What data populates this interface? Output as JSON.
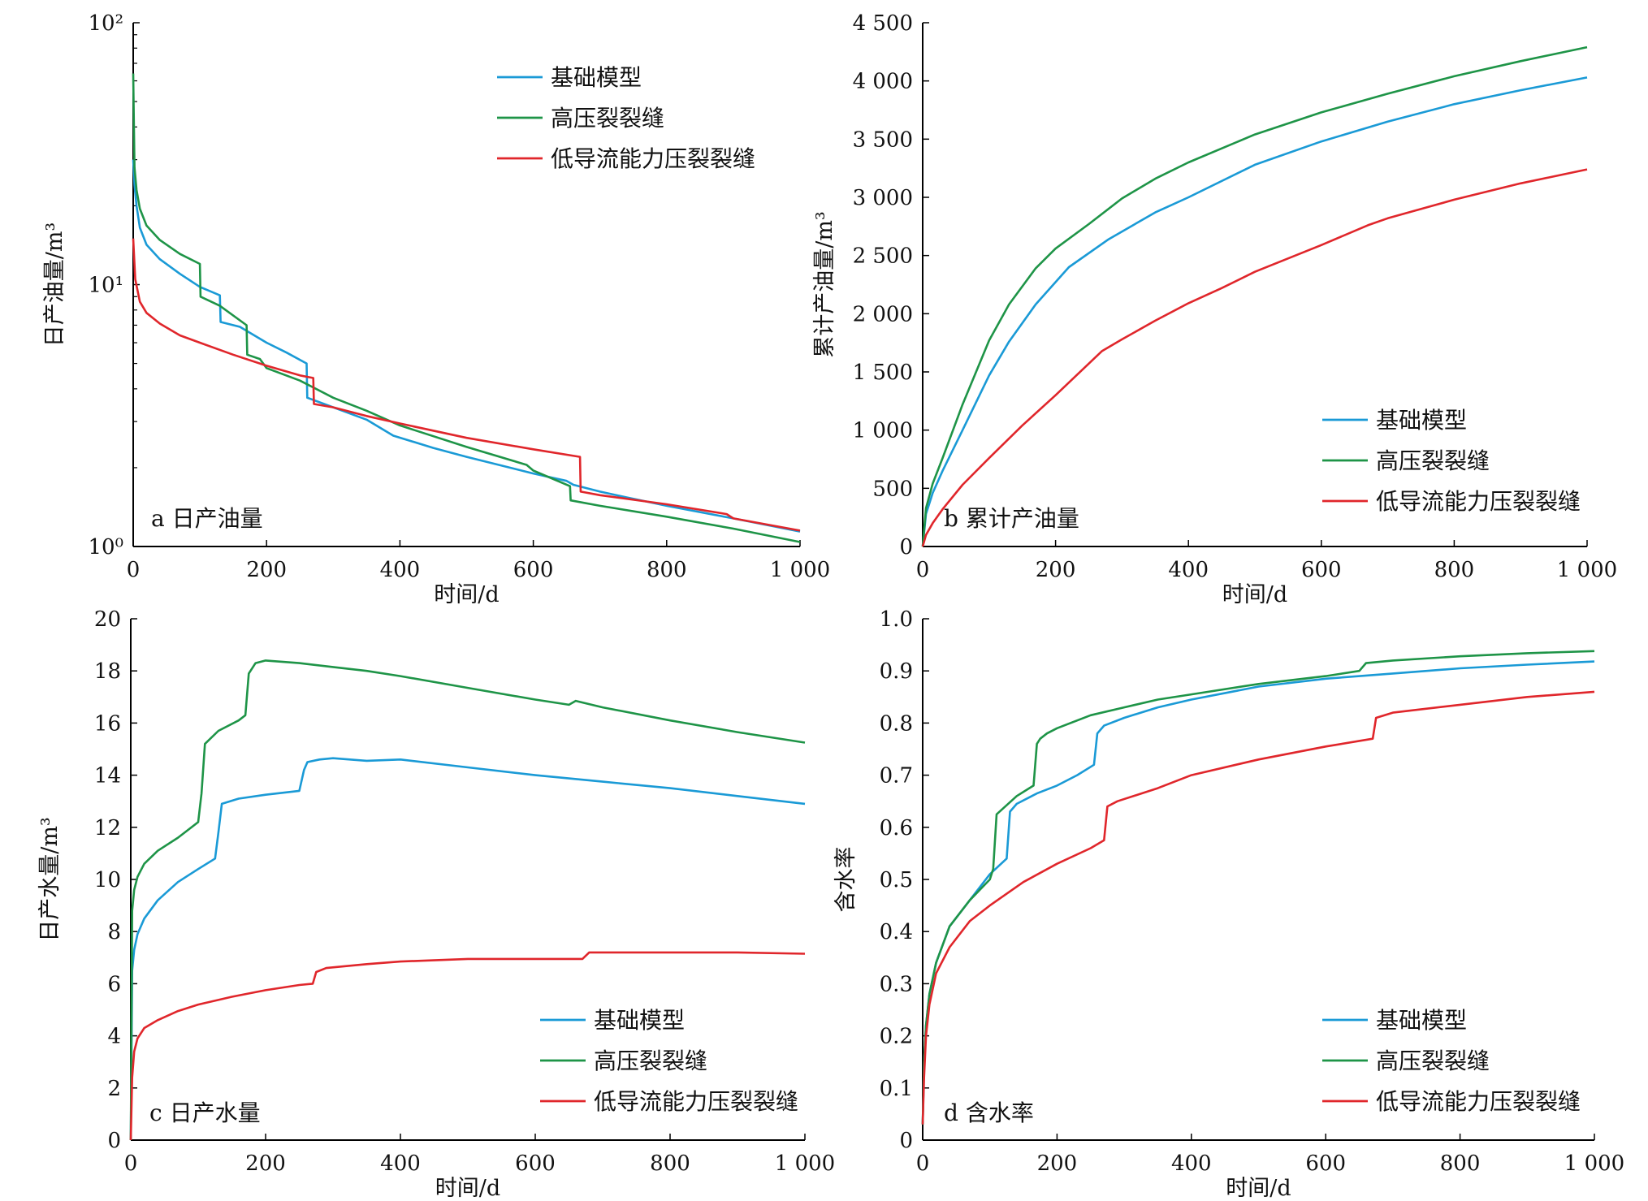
{
  "chart_data": [
    {
      "type": "line",
      "panel_label": "a 日产油量",
      "xlabel": "时间/d",
      "ylabel": "日产油量/m³",
      "xlim": [
        0,
        1000
      ],
      "ylim": [
        1,
        100
      ],
      "y_scale": "log",
      "x_ticks": [
        "0",
        "200",
        "400",
        "600",
        "800",
        "1 000"
      ],
      "x_tick_values": [
        0,
        200,
        400,
        600,
        800,
        1000
      ],
      "y_ticks": [
        "10⁰",
        "10¹",
        "10²"
      ],
      "y_tick_values": [
        1,
        10,
        100
      ],
      "legend_position": "top-right",
      "series": [
        {
          "name": "基础模型",
          "color": "#1a9ad6",
          "x": [
            0,
            2,
            5,
            10,
            20,
            40,
            70,
            100,
            130,
            131,
            160,
            200,
            230,
            260,
            261,
            300,
            350,
            390,
            450,
            500,
            600,
            650,
            660,
            700,
            740,
            800,
            900,
            1000
          ],
          "y": [
            30,
            24,
            20,
            16.5,
            14.2,
            12.5,
            11,
            9.8,
            9.1,
            7.2,
            6.9,
            6.0,
            5.5,
            5.0,
            3.7,
            3.4,
            3.05,
            2.65,
            2.38,
            2.2,
            1.9,
            1.78,
            1.72,
            1.62,
            1.54,
            1.43,
            1.28,
            1.14
          ]
        },
        {
          "name": "高压裂裂缝",
          "color": "#1e9447",
          "x": [
            0,
            2,
            5,
            10,
            20,
            40,
            70,
            100,
            101,
            130,
            170,
            171,
            190,
            200,
            250,
            300,
            350,
            400,
            500,
            590,
            600,
            655,
            656,
            700,
            800,
            900,
            1000
          ],
          "y": [
            64,
            28,
            23,
            19.5,
            16.8,
            14.8,
            13.1,
            12.0,
            9.0,
            8.3,
            7.0,
            5.4,
            5.2,
            4.8,
            4.3,
            3.7,
            3.3,
            2.9,
            2.4,
            2.05,
            1.95,
            1.7,
            1.5,
            1.43,
            1.3,
            1.17,
            1.04
          ]
        },
        {
          "name": "低导流能力压裂裂缝",
          "color": "#e0262b",
          "x": [
            0,
            3,
            10,
            20,
            40,
            70,
            100,
            150,
            200,
            250,
            270,
            271,
            300,
            350,
            400,
            500,
            600,
            670,
            671,
            700,
            800,
            890,
            900,
            1000
          ],
          "y": [
            15,
            10.5,
            8.6,
            7.8,
            7.1,
            6.4,
            6.0,
            5.4,
            4.9,
            4.5,
            4.4,
            3.5,
            3.4,
            3.15,
            2.95,
            2.6,
            2.35,
            2.2,
            1.62,
            1.57,
            1.45,
            1.33,
            1.28,
            1.15
          ]
        }
      ]
    },
    {
      "type": "line",
      "panel_label": "b 累计产油量",
      "xlabel": "时间/d",
      "ylabel": "累计产油量/m³",
      "xlim": [
        0,
        1000
      ],
      "ylim": [
        0,
        4500
      ],
      "x_ticks": [
        "0",
        "200",
        "400",
        "600",
        "800",
        "1 000"
      ],
      "x_tick_values": [
        0,
        200,
        400,
        600,
        800,
        1000
      ],
      "y_ticks": [
        "0",
        "500",
        "1 000",
        "1 500",
        "2 000",
        "2 500",
        "3 000",
        "3 500",
        "4 000",
        "4 500"
      ],
      "y_tick_values": [
        0,
        500,
        1000,
        1500,
        2000,
        2500,
        3000,
        3500,
        4000,
        4500
      ],
      "legend_position": "bottom-right",
      "series": [
        {
          "name": "基础模型",
          "color": "#1a9ad6",
          "x": [
            0,
            5,
            15,
            30,
            60,
            100,
            130,
            170,
            220,
            280,
            350,
            400,
            500,
            600,
            700,
            800,
            900,
            1000
          ],
          "y": [
            0,
            280,
            460,
            650,
            1000,
            1470,
            1760,
            2080,
            2400,
            2640,
            2870,
            3000,
            3280,
            3480,
            3650,
            3800,
            3920,
            4030
          ]
        },
        {
          "name": "高压裂裂缝",
          "color": "#1e9447",
          "x": [
            0,
            5,
            15,
            30,
            60,
            100,
            130,
            170,
            200,
            250,
            300,
            350,
            400,
            500,
            600,
            700,
            800,
            900,
            1000
          ],
          "y": [
            0,
            330,
            540,
            760,
            1220,
            1770,
            2080,
            2390,
            2560,
            2770,
            2990,
            3160,
            3300,
            3540,
            3730,
            3890,
            4040,
            4170,
            4290
          ]
        },
        {
          "name": "低导流能力压裂裂缝",
          "color": "#e0262b",
          "x": [
            0,
            5,
            15,
            30,
            60,
            100,
            150,
            200,
            270,
            300,
            350,
            400,
            450,
            500,
            600,
            670,
            700,
            800,
            900,
            1000
          ],
          "y": [
            0,
            100,
            200,
            320,
            530,
            760,
            1040,
            1300,
            1680,
            1780,
            1940,
            2090,
            2220,
            2360,
            2590,
            2760,
            2820,
            2980,
            3120,
            3240
          ]
        }
      ]
    },
    {
      "type": "line",
      "panel_label": "c 日产水量",
      "xlabel": "时间/d",
      "ylabel": "日产水量/m³",
      "xlim": [
        0,
        1000
      ],
      "ylim": [
        0,
        20
      ],
      "x_ticks": [
        "0",
        "200",
        "400",
        "600",
        "800",
        "1 000"
      ],
      "x_tick_values": [
        0,
        200,
        400,
        600,
        800,
        1000
      ],
      "y_ticks": [
        "0",
        "2",
        "4",
        "6",
        "8",
        "10",
        "12",
        "14",
        "16",
        "18",
        "20"
      ],
      "y_tick_values": [
        0,
        2,
        4,
        6,
        8,
        10,
        12,
        14,
        16,
        18,
        20
      ],
      "legend_position": "bottom-right",
      "series": [
        {
          "name": "基础模型",
          "color": "#1a9ad6",
          "x": [
            0,
            2,
            5,
            10,
            20,
            40,
            70,
            100,
            125,
            130,
            135,
            160,
            200,
            250,
            257,
            262,
            280,
            300,
            350,
            400,
            500,
            600,
            700,
            800,
            900,
            1000
          ],
          "y": [
            0,
            6.5,
            7.3,
            7.9,
            8.5,
            9.2,
            9.9,
            10.4,
            10.8,
            11.8,
            12.9,
            13.1,
            13.25,
            13.4,
            14.2,
            14.5,
            14.6,
            14.65,
            14.55,
            14.6,
            14.3,
            14.0,
            13.75,
            13.5,
            13.2,
            12.9
          ]
        },
        {
          "name": "高压裂裂缝",
          "color": "#1e9447",
          "x": [
            0,
            2,
            5,
            10,
            20,
            40,
            70,
            100,
            105,
            110,
            130,
            160,
            170,
            175,
            185,
            200,
            250,
            300,
            350,
            400,
            500,
            600,
            650,
            660,
            700,
            800,
            900,
            1000
          ],
          "y": [
            0,
            8.8,
            9.6,
            10.1,
            10.6,
            11.1,
            11.6,
            12.2,
            13.3,
            15.2,
            15.7,
            16.1,
            16.3,
            17.9,
            18.3,
            18.4,
            18.3,
            18.15,
            18.0,
            17.8,
            17.35,
            16.9,
            16.7,
            16.85,
            16.6,
            16.1,
            15.65,
            15.25
          ]
        },
        {
          "name": "低导流能力压裂裂缝",
          "color": "#e0262b",
          "x": [
            0,
            2,
            5,
            10,
            20,
            40,
            70,
            100,
            150,
            200,
            250,
            270,
            275,
            290,
            350,
            400,
            500,
            600,
            670,
            680,
            700,
            800,
            900,
            1000
          ],
          "y": [
            0,
            2.4,
            3.4,
            3.9,
            4.3,
            4.6,
            4.95,
            5.2,
            5.5,
            5.75,
            5.95,
            6.0,
            6.45,
            6.6,
            6.75,
            6.85,
            6.95,
            6.95,
            6.95,
            7.2,
            7.2,
            7.2,
            7.2,
            7.15
          ]
        }
      ]
    },
    {
      "type": "line",
      "panel_label": "d 含水率",
      "xlabel": "时间/d",
      "ylabel": "含水率",
      "xlim": [
        0,
        1000
      ],
      "ylim": [
        0,
        1.0
      ],
      "x_ticks": [
        "0",
        "200",
        "400",
        "600",
        "800",
        "1 000"
      ],
      "x_tick_values": [
        0,
        200,
        400,
        600,
        800,
        1000
      ],
      "y_ticks": [
        "0",
        "0.1",
        "0.2",
        "0.3",
        "0.4",
        "0.5",
        "0.6",
        "0.7",
        "0.8",
        "0.9",
        "1.0"
      ],
      "y_tick_values": [
        0,
        0.1,
        0.2,
        0.3,
        0.4,
        0.5,
        0.6,
        0.7,
        0.8,
        0.9,
        1.0
      ],
      "legend_position": "bottom-right",
      "series": [
        {
          "name": "基础模型",
          "color": "#1a9ad6",
          "x": [
            0,
            2,
            5,
            10,
            20,
            40,
            70,
            100,
            125,
            130,
            140,
            170,
            200,
            230,
            255,
            260,
            270,
            300,
            350,
            400,
            500,
            600,
            700,
            800,
            900,
            1000
          ],
          "y": [
            0.03,
            0.15,
            0.22,
            0.28,
            0.34,
            0.41,
            0.46,
            0.51,
            0.54,
            0.63,
            0.645,
            0.665,
            0.68,
            0.7,
            0.72,
            0.78,
            0.795,
            0.81,
            0.83,
            0.845,
            0.87,
            0.885,
            0.895,
            0.905,
            0.912,
            0.918
          ]
        },
        {
          "name": "高压裂裂缝",
          "color": "#1e9447",
          "x": [
            0,
            2,
            5,
            10,
            20,
            40,
            70,
            100,
            105,
            110,
            140,
            165,
            170,
            175,
            185,
            200,
            250,
            300,
            350,
            400,
            500,
            600,
            650,
            660,
            700,
            800,
            900,
            1000
          ],
          "y": [
            0.03,
            0.15,
            0.22,
            0.28,
            0.34,
            0.41,
            0.46,
            0.5,
            0.52,
            0.625,
            0.66,
            0.68,
            0.76,
            0.77,
            0.78,
            0.79,
            0.815,
            0.83,
            0.845,
            0.855,
            0.875,
            0.89,
            0.9,
            0.915,
            0.92,
            0.928,
            0.934,
            0.938
          ]
        },
        {
          "name": "低导流能力压裂裂缝",
          "color": "#e0262b",
          "x": [
            0,
            2,
            5,
            10,
            20,
            40,
            70,
            100,
            150,
            200,
            250,
            270,
            275,
            290,
            350,
            400,
            500,
            600,
            670,
            675,
            700,
            800,
            900,
            1000
          ],
          "y": [
            0.03,
            0.12,
            0.2,
            0.26,
            0.32,
            0.37,
            0.42,
            0.45,
            0.495,
            0.53,
            0.56,
            0.575,
            0.64,
            0.65,
            0.675,
            0.7,
            0.73,
            0.755,
            0.77,
            0.81,
            0.82,
            0.835,
            0.85,
            0.86
          ]
        }
      ]
    }
  ]
}
